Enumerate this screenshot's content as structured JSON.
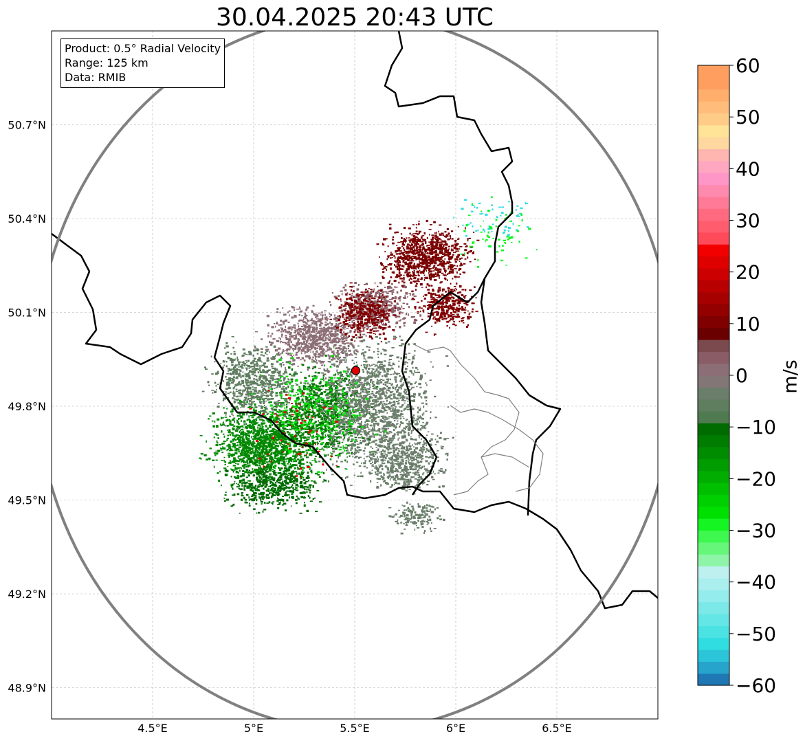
{
  "title": "30.04.2025 20:43 UTC",
  "info": {
    "product": "Product: 0.5° Radial Velocity",
    "range": "Range: 125 km",
    "data": "Data: RMIB"
  },
  "map_axes": {
    "lon_range": [
      4.0,
      7.0
    ],
    "lat_range": [
      48.8,
      51.0
    ],
    "lon_ticks": [
      "4.5°E",
      "5°E",
      "5.5°E",
      "6°E",
      "6.5°E"
    ],
    "lat_ticks": [
      "50.7°N",
      "50.4°N",
      "50.1°N",
      "49.8°N",
      "49.5°N",
      "49.2°N",
      "48.9°N"
    ],
    "grid": true
  },
  "radar_site": {
    "lon": 5.505,
    "lat": 49.914,
    "color": "#e00000"
  },
  "range_ring_color": "#808080",
  "colorbar": {
    "label": "m/s",
    "min": -60,
    "max": 60,
    "ticks": [
      "60",
      "50",
      "40",
      "30",
      "20",
      "10",
      "0",
      "−10",
      "−20",
      "−30",
      "−40",
      "−50",
      "−60"
    ],
    "colors_bottom_to_top": [
      "#1f78b4",
      "#26a4cc",
      "#2bc4d8",
      "#30dde0",
      "#4ae2e2",
      "#64e6e6",
      "#7ce8e8",
      "#94ecec",
      "#aaeeee",
      "#bff0f0",
      "#8ef5a8",
      "#66f77a",
      "#3ef850",
      "#14f522",
      "#00e000",
      "#00cf00",
      "#00be00",
      "#00ad00",
      "#009c00",
      "#008c00",
      "#007c00",
      "#006c00",
      "#507a50",
      "#5f7d5f",
      "#6b7e6b",
      "#827676",
      "#8c6e77",
      "#8a5c66",
      "#7a4a4f",
      "#6a0000",
      "#800000",
      "#930000",
      "#a60000",
      "#b90000",
      "#cc0000",
      "#df0000",
      "#f20000",
      "#ff4a5a",
      "#ff5c6e",
      "#ff6a80",
      "#ff7a96",
      "#ff8ab0",
      "#ff96c8",
      "#ffa6c0",
      "#ffb6b0",
      "#ffd8a0",
      "#ffe498",
      "#ffcc88",
      "#ffbc7a",
      "#ffae6c",
      "#ff9e5e",
      "#ff9e5e"
    ]
  },
  "echo_regions": [
    {
      "lon": 5.05,
      "lat": 49.68,
      "rx": 0.27,
      "ry": 0.14,
      "color": "#008800",
      "density": 1500
    },
    {
      "lon": 5.35,
      "lat": 49.78,
      "rx": 0.22,
      "ry": 0.16,
      "color": "#007700",
      "density": 900
    },
    {
      "lon": 5.1,
      "lat": 49.55,
      "rx": 0.25,
      "ry": 0.08,
      "color": "#006a00",
      "density": 500
    },
    {
      "lon": 5.0,
      "lat": 49.88,
      "rx": 0.22,
      "ry": 0.12,
      "color": "#5f7d5f",
      "density": 700
    },
    {
      "lon": 5.6,
      "lat": 49.8,
      "rx": 0.3,
      "ry": 0.22,
      "color": "#6b7e6b",
      "density": 1500
    },
    {
      "lon": 5.75,
      "lat": 49.62,
      "rx": 0.2,
      "ry": 0.1,
      "color": "#6b7e6b",
      "density": 500
    },
    {
      "lon": 5.8,
      "lat": 49.45,
      "rx": 0.12,
      "ry": 0.05,
      "color": "#6b7e6b",
      "density": 150
    },
    {
      "lon": 5.3,
      "lat": 50.02,
      "rx": 0.25,
      "ry": 0.1,
      "color": "#8c6e77",
      "density": 800
    },
    {
      "lon": 5.6,
      "lat": 50.12,
      "rx": 0.2,
      "ry": 0.08,
      "color": "#8a5c66",
      "density": 500
    },
    {
      "lon": 5.85,
      "lat": 50.28,
      "rx": 0.22,
      "ry": 0.1,
      "color": "#7a0000",
      "density": 900
    },
    {
      "lon": 5.55,
      "lat": 50.1,
      "rx": 0.15,
      "ry": 0.08,
      "color": "#800000",
      "density": 400
    },
    {
      "lon": 5.95,
      "lat": 50.12,
      "rx": 0.15,
      "ry": 0.07,
      "color": "#800000",
      "density": 350
    },
    {
      "lon": 5.3,
      "lat": 49.78,
      "rx": 0.28,
      "ry": 0.18,
      "color": "#00e000",
      "density": 300
    },
    {
      "lon": 5.2,
      "lat": 49.72,
      "rx": 0.25,
      "ry": 0.15,
      "color": "#df0000",
      "density": 60
    },
    {
      "lon": 6.2,
      "lat": 50.4,
      "rx": 0.22,
      "ry": 0.1,
      "color": "#30dde0",
      "density": 60
    },
    {
      "lon": 6.2,
      "lat": 50.35,
      "rx": 0.2,
      "ry": 0.1,
      "color": "#14f522",
      "density": 60
    }
  ]
}
